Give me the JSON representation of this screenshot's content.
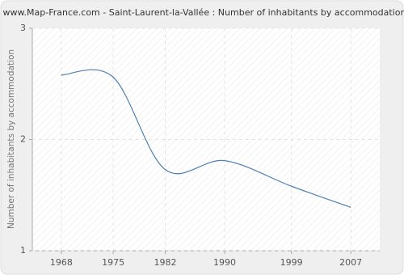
{
  "chart_data": {
    "type": "line",
    "title": "www.Map-France.com - Saint-Laurent-la-Vallée : Number of inhabitants by accommodation",
    "y_label": "Number of inhabitants by accommodation",
    "x": [
      1968,
      1975,
      1982,
      1990,
      1999,
      2007
    ],
    "series": [
      {
        "name": "Number of inhabitants by accommodation",
        "color": "#4f7fae",
        "values": [
          2.58,
          2.56,
          1.73,
          1.81,
          1.58,
          1.39
        ]
      }
    ],
    "xlim": [
      1964.1,
      2010.9
    ],
    "xticks": [
      1968,
      1975,
      1982,
      1990,
      1999,
      2007
    ],
    "ylim": [
      1,
      3
    ],
    "yticks": [
      1,
      2,
      3
    ],
    "grid": true,
    "smooth": true
  }
}
